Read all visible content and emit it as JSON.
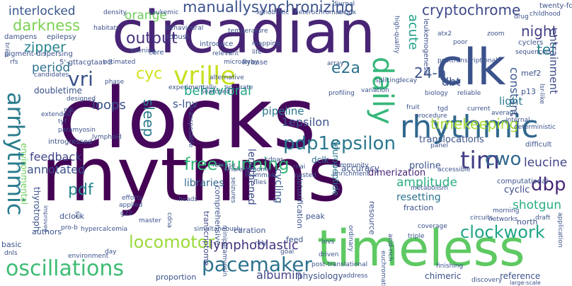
{
  "words": [
    {
      "text": "circadian",
      "color": "#482475"
    },
    {
      "text": "clocks",
      "color": "#46085c"
    },
    {
      "text": "rhythms",
      "color": "#440154"
    },
    {
      "text": "clk",
      "color": "#3b528b"
    },
    {
      "text": "timeless",
      "color": "#5ec962"
    },
    {
      "text": "rhythmic",
      "color": "#31688e"
    },
    {
      "text": "vrille",
      "color": "#c8e020"
    },
    {
      "text": "daily",
      "color": "#35b779"
    },
    {
      "text": "oscillations",
      "color": "#3fbc73"
    },
    {
      "text": "arrhythmic",
      "color": "#287c8e"
    },
    {
      "text": "pacemaker",
      "color": "#2c728e"
    },
    {
      "text": "pdp1epsilon",
      "color": "#2a788e"
    },
    {
      "text": "tim",
      "color": "#433e85"
    },
    {
      "text": "cwo",
      "color": "#31688e"
    },
    {
      "text": "dbp",
      "color": "#482878"
    },
    {
      "text": "clockwork",
      "color": "#20a486"
    },
    {
      "text": "locomotor",
      "color": "#9bd93c"
    },
    {
      "text": "timekeeping",
      "color": "#a5db36"
    },
    {
      "text": "free-running",
      "color": "#35b779"
    },
    {
      "text": "cryptochrome",
      "color": "#3e4989"
    },
    {
      "text": "manuallysynchronizing",
      "color": "#3b528b"
    },
    {
      "text": "darkness",
      "color": "#7ad151"
    },
    {
      "text": "interlocked",
      "color": "#39568c"
    },
    {
      "text": "output",
      "color": "#472f7d"
    },
    {
      "text": "zipper",
      "color": "#26828e"
    },
    {
      "text": "period",
      "color": "#2c728e"
    },
    {
      "text": "vri",
      "color": "#3b528b"
    },
    {
      "text": "cyc",
      "color": "#d2e21b"
    },
    {
      "text": "pdf",
      "color": "#25848e"
    },
    {
      "text": "sleep",
      "color": "#2a788e"
    },
    {
      "text": "loops",
      "color": "#3b528b"
    },
    {
      "text": "behavioral",
      "color": "#22a785"
    },
    {
      "text": "feedback",
      "color": "#404688"
    },
    {
      "text": "annotated",
      "color": "#3b528b"
    },
    {
      "text": "lymphoblastic",
      "color": "#46337e"
    },
    {
      "text": "albumin",
      "color": "#414487"
    },
    {
      "text": "e2a",
      "color": "#2c728e"
    },
    {
      "text": "24-h",
      "color": "#3b528b"
    },
    {
      "text": "night",
      "color": "#423f85"
    },
    {
      "text": "tef",
      "color": "#26828e"
    },
    {
      "text": "acute",
      "color": "#1fa088"
    },
    {
      "text": "orange",
      "color": "#6ccd5a"
    },
    {
      "text": "leucine",
      "color": "#414487"
    },
    {
      "text": "shotgun",
      "color": "#28ae80"
    },
    {
      "text": "amplitude",
      "color": "#29af7f"
    },
    {
      "text": "1epsilon",
      "color": "#3b528b"
    },
    {
      "text": "dbt",
      "color": "#3b528b"
    },
    {
      "text": "constant",
      "color": "#38598c"
    },
    {
      "text": "entrainment",
      "color": "#3e4989"
    },
    {
      "text": "pipeline",
      "color": "#2a788e"
    },
    {
      "text": "s-lnv",
      "color": "#3b528b"
    },
    {
      "text": "libraries",
      "color": "#31688e"
    },
    {
      "text": "cycling",
      "color": "#375a8c"
    },
    {
      "text": "lengthened",
      "color": "#3e4989"
    },
    {
      "text": "light",
      "color": "#2a788e"
    },
    {
      "text": "resetting",
      "color": "#2c728e"
    },
    {
      "text": "cyclic",
      "color": "#3e4989"
    },
    {
      "text": "translocations",
      "color": "#3b528b"
    },
    {
      "text": "proline",
      "color": "#3b528b"
    },
    {
      "text": "dimerization",
      "color": "#482475"
    },
    {
      "text": "accuracy",
      "color": "#3b528b"
    },
    {
      "text": "neuropeptide",
      "color": "#2a788e"
    },
    {
      "text": "dclk",
      "color": "#2c728e"
    },
    {
      "text": "environmental",
      "color": "#6ccd5a"
    },
    {
      "text": "doubletime",
      "color": "#3b528b"
    },
    {
      "text": "thyrotroph",
      "color": "#3b528b"
    },
    {
      "text": "comprehensive",
      "color": "#3b528b"
    },
    {
      "text": "transcriptome",
      "color": "#414487"
    },
    {
      "text": "authors",
      "color": "#3b528b"
    },
    {
      "text": "dclock",
      "color": "#3b528b"
    },
    {
      "text": "basic",
      "color": "#3b528b"
    },
    {
      "text": "curation",
      "color": "#3b528b"
    },
    {
      "text": "feed",
      "color": "#3b528b"
    },
    {
      "text": "physiology",
      "color": "#3b528b"
    },
    {
      "text": "chimeric",
      "color": "#3b528b"
    },
    {
      "text": "reference",
      "color": "#3b528b"
    },
    {
      "text": "proportion",
      "color": "#3b528b"
    },
    {
      "text": "north",
      "color": "#3b528b"
    },
    {
      "text": "peak",
      "color": "#3b528b"
    },
    {
      "text": "detoxification",
      "color": "#3b528b"
    },
    {
      "text": "fraction",
      "color": "#3b528b"
    },
    {
      "text": "resource",
      "color": "#3b528b"
    },
    {
      "text": "5'-gttacgtaat-3",
      "color": "#3b528b"
    },
    {
      "text": "pigment-dispersing",
      "color": "#3b528b"
    },
    {
      "text": "core",
      "color": "#3b528b"
    },
    {
      "text": "flybase",
      "color": "#3b528b"
    },
    {
      "text": "dampens",
      "color": "#3b528b"
    },
    {
      "text": "epilepsy",
      "color": "#3b528b"
    },
    {
      "text": "habitats",
      "color": "#3b528b"
    },
    {
      "text": "robust",
      "color": "#3b528b"
    },
    {
      "text": "introduce",
      "color": "#3b528b"
    },
    {
      "text": "temperature",
      "color": "#3b528b"
    },
    {
      "text": "mapping",
      "color": "#3b528b"
    },
    {
      "text": "leukemic",
      "color": "#3b528b"
    },
    {
      "text": "density",
      "color": "#3b528b"
    },
    {
      "text": "xenobiotic",
      "color": "#3b528b"
    },
    {
      "text": "heterochromatic",
      "color": "#3b528b"
    },
    {
      "text": "diurnal",
      "color": "#3b528b"
    },
    {
      "text": "e-box",
      "color": "#3b528b"
    },
    {
      "text": "high-quality",
      "color": "#3b528b"
    },
    {
      "text": "leukemogenesis",
      "color": "#3b528b"
    },
    {
      "text": "twenty-four",
      "color": "#3b528b"
    },
    {
      "text": "childhood",
      "color": "#3b528b"
    },
    {
      "text": "drug",
      "color": "#3b528b"
    },
    {
      "text": "zoom",
      "color": "#3b528b"
    },
    {
      "text": "atx2",
      "color": "#3b528b"
    },
    {
      "text": "poor",
      "color": "#3b528b"
    },
    {
      "text": "cyclers",
      "color": "#3b528b"
    },
    {
      "text": "sequenced",
      "color": "#3b528b"
    },
    {
      "text": "posttranscriptional",
      "color": "#3b528b"
    },
    {
      "text": "mef2",
      "color": "#3b528b"
    },
    {
      "text": "p13",
      "color": "#3b528b"
    },
    {
      "text": "lsr-like",
      "color": "#3b528b"
    },
    {
      "text": "reliable",
      "color": "#3b528b"
    },
    {
      "text": "biology",
      "color": "#3b528b"
    },
    {
      "text": "decay",
      "color": "#3b528b"
    },
    {
      "text": "array",
      "color": "#3b528b"
    },
    {
      "text": "profiling",
      "color": "#3b528b"
    },
    {
      "text": "variation",
      "color": "#3b528b"
    },
    {
      "text": "splicing",
      "color": "#3b528b"
    },
    {
      "text": "fruit",
      "color": "#3b528b"
    },
    {
      "text": "tgd",
      "color": "#3b528b"
    },
    {
      "text": "procedure",
      "color": "#3b528b"
    },
    {
      "text": "current",
      "color": "#3b528b"
    },
    {
      "text": "average",
      "color": "#3b528b"
    },
    {
      "text": "internal",
      "color": "#3b528b"
    },
    {
      "text": "deterministic",
      "color": "#3b528b"
    },
    {
      "text": "difficult",
      "color": "#3b528b"
    },
    {
      "text": "computational",
      "color": "#3b528b"
    },
    {
      "text": "morning",
      "color": "#3b528b"
    },
    {
      "text": "networks",
      "color": "#3b528b"
    },
    {
      "text": "circuits",
      "color": "#3b528b"
    },
    {
      "text": "draft",
      "color": "#3b528b"
    },
    {
      "text": "application",
      "color": "#3b528b"
    },
    {
      "text": "large-scale",
      "color": "#3b528b"
    },
    {
      "text": "panel",
      "color": "#3b528b"
    },
    {
      "text": "accessible",
      "color": "#3b528b"
    },
    {
      "text": "metabolism",
      "color": "#3b528b"
    },
    {
      "text": "coverage",
      "color": "#3b528b"
    },
    {
      "text": "acid-rich",
      "color": "#3b528b"
    },
    {
      "text": "finishing",
      "color": "#3b528b"
    },
    {
      "text": "discovery",
      "color": "#3b528b"
    },
    {
      "text": "triple",
      "color": "#3b528b"
    },
    {
      "text": "ordinary",
      "color": "#3b528b"
    },
    {
      "text": "driven",
      "color": "#3b528b"
    },
    {
      "text": "euchromatic",
      "color": "#3b528b"
    },
    {
      "text": "address",
      "color": "#3b528b"
    },
    {
      "text": "post-translational",
      "color": "#3b528b"
    },
    {
      "text": "goal",
      "color": "#3b528b"
    },
    {
      "text": "lnvs",
      "color": "#3b528b"
    },
    {
      "text": "cdnas",
      "color": "#3b528b"
    },
    {
      "text": "rnai",
      "color": "#3b528b"
    },
    {
      "text": "community",
      "color": "#3b528b"
    },
    {
      "text": "enrichment",
      "color": "#3b528b"
    },
    {
      "text": "nested",
      "color": "#3b528b"
    },
    {
      "text": "mammals",
      "color": "#3b528b"
    },
    {
      "text": "whole-genome",
      "color": "#3b528b"
    },
    {
      "text": "seizures",
      "color": "#3b528b"
    },
    {
      "text": "release",
      "color": "#3b528b"
    },
    {
      "text": "flies",
      "color": "#3b528b"
    },
    {
      "text": "simultaneously",
      "color": "#3b528b"
    },
    {
      "text": "miniparamyosin",
      "color": "#3b528b"
    },
    {
      "text": "cdna",
      "color": "#3b528b"
    },
    {
      "text": "master",
      "color": "#3b528b"
    },
    {
      "text": "g22",
      "color": "#3b528b"
    },
    {
      "text": "hypercalcemia",
      "color": "#3b528b"
    },
    {
      "text": "s2",
      "color": "#3b528b"
    },
    {
      "text": "pro-b",
      "color": "#3b528b"
    },
    {
      "text": "applied",
      "color": "#3b528b"
    },
    {
      "text": "improved",
      "color": "#3b528b"
    },
    {
      "text": "dnls",
      "color": "#3b528b"
    },
    {
      "text": "environment",
      "color": "#3b528b"
    },
    {
      "text": "day",
      "color": "#3b528b"
    },
    {
      "text": "rely",
      "color": "#3b528b"
    },
    {
      "text": "heads",
      "color": "#3b528b"
    },
    {
      "text": "efforts",
      "color": "#3b528b"
    },
    {
      "text": "lymphoid",
      "color": "#3b528b"
    },
    {
      "text": "introgressed",
      "color": "#3b528b"
    },
    {
      "text": "paramyosin",
      "color": "#3b528b"
    },
    {
      "text": "tyf",
      "color": "#3b528b"
    },
    {
      "text": "mb",
      "color": "#3b528b"
    },
    {
      "text": "designed",
      "color": "#3b528b"
    },
    {
      "text": "extended",
      "color": "#3b528b"
    },
    {
      "text": "candidates",
      "color": "#3b528b"
    },
    {
      "text": "brain",
      "color": "#3b528b"
    },
    {
      "text": "phase",
      "color": "#3b528b"
    },
    {
      "text": "experimentally",
      "color": "#3b528b"
    },
    {
      "text": "searched",
      "color": "#3b528b"
    },
    {
      "text": "transposable",
      "color": "#3b528b"
    },
    {
      "text": "alternative",
      "color": "#3b528b"
    },
    {
      "text": "accurate",
      "color": "#3b528b"
    },
    {
      "text": "microarray",
      "color": "#3b528b"
    },
    {
      "text": "relevant",
      "color": "#3b528b"
    },
    {
      "text": "life",
      "color": "#3b528b"
    },
    {
      "text": "evening",
      "color": "#3b528b"
    },
    {
      "text": "estimated",
      "color": "#3b528b"
    },
    {
      "text": "behavioural",
      "color": "#3b528b"
    },
    {
      "text": "rfs",
      "color": "#3b528b"
    }
  ]
}
